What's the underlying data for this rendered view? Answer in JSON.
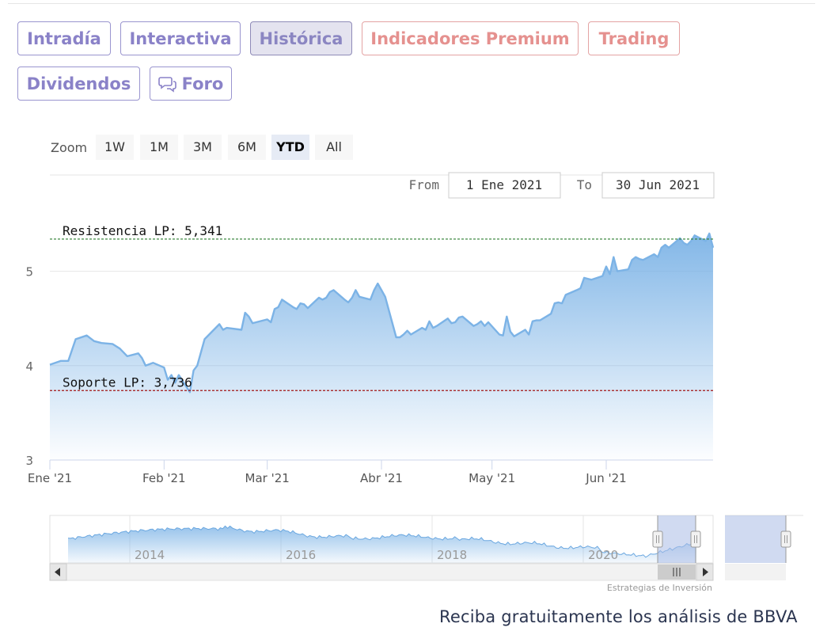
{
  "tabs": [
    {
      "label": "Intradía",
      "state": "normal"
    },
    {
      "label": "Interactiva",
      "state": "normal"
    },
    {
      "label": "Histórica",
      "state": "active"
    },
    {
      "label": "Indicadores Premium",
      "state": "premium"
    },
    {
      "label": "Trading",
      "state": "premium"
    },
    {
      "label": "Dividendos",
      "state": "normal"
    },
    {
      "label": "Foro",
      "state": "normal",
      "icon": "chat-bubbles-icon"
    }
  ],
  "zoom": {
    "label": "Zoom",
    "buttons": [
      "1W",
      "1M",
      "3M",
      "6M",
      "YTD",
      "All"
    ],
    "selected": "YTD"
  },
  "range": {
    "from_label": "From",
    "from_value": "1 Ene 2021",
    "to_label": "To",
    "to_value": "30 Jun 2021"
  },
  "chart_data": {
    "type": "area",
    "x_range": [
      "2021-01-01",
      "2021-06-30"
    ],
    "ylim": [
      3,
      5.5
    ],
    "y_ticks": [
      "3",
      "4",
      "5"
    ],
    "x_ticks": [
      {
        "label": "Ene '21",
        "date": "2021-01-01"
      },
      {
        "label": "Feb '21",
        "date": "2021-02-01"
      },
      {
        "label": "Mar '21",
        "date": "2021-03-01"
      },
      {
        "label": "Abr '21",
        "date": "2021-04-01"
      },
      {
        "label": "May '21",
        "date": "2021-05-01"
      },
      {
        "label": "Jun '21",
        "date": "2021-06-01"
      }
    ],
    "grid": true,
    "series": [
      {
        "color": "#7cb3e6",
        "points": [
          [
            "2021-01-01",
            4.01
          ],
          [
            "2021-01-04",
            4.05
          ],
          [
            "2021-01-06",
            4.05
          ],
          [
            "2021-01-08",
            4.28
          ],
          [
            "2021-01-11",
            4.32
          ],
          [
            "2021-01-13",
            4.26
          ],
          [
            "2021-01-15",
            4.24
          ],
          [
            "2021-01-18",
            4.23
          ],
          [
            "2021-01-20",
            4.18
          ],
          [
            "2021-01-22",
            4.1
          ],
          [
            "2021-01-25",
            4.13
          ],
          [
            "2021-01-26",
            4.08
          ],
          [
            "2021-01-27",
            4.0
          ],
          [
            "2021-01-29",
            4.03
          ],
          [
            "2021-02-01",
            3.98
          ],
          [
            "2021-02-02",
            3.85
          ],
          [
            "2021-02-03",
            3.9
          ],
          [
            "2021-02-04",
            3.82
          ],
          [
            "2021-02-05",
            3.9
          ],
          [
            "2021-02-08",
            3.72
          ],
          [
            "2021-02-09",
            3.95
          ],
          [
            "2021-02-10",
            4.0
          ],
          [
            "2021-02-12",
            4.28
          ],
          [
            "2021-02-15",
            4.4
          ],
          [
            "2021-02-16",
            4.44
          ],
          [
            "2021-02-17",
            4.38
          ],
          [
            "2021-02-18",
            4.4
          ],
          [
            "2021-02-22",
            4.38
          ],
          [
            "2021-02-23",
            4.56
          ],
          [
            "2021-02-24",
            4.52
          ],
          [
            "2021-02-25",
            4.45
          ],
          [
            "2021-02-26",
            4.46
          ],
          [
            "2021-03-01",
            4.49
          ],
          [
            "2021-03-02",
            4.46
          ],
          [
            "2021-03-03",
            4.6
          ],
          [
            "2021-03-04",
            4.62
          ],
          [
            "2021-03-05",
            4.7
          ],
          [
            "2021-03-08",
            4.62
          ],
          [
            "2021-03-09",
            4.6
          ],
          [
            "2021-03-10",
            4.66
          ],
          [
            "2021-03-11",
            4.65
          ],
          [
            "2021-03-12",
            4.61
          ],
          [
            "2021-03-15",
            4.72
          ],
          [
            "2021-03-16",
            4.7
          ],
          [
            "2021-03-17",
            4.72
          ],
          [
            "2021-03-18",
            4.78
          ],
          [
            "2021-03-19",
            4.8
          ],
          [
            "2021-03-22",
            4.7
          ],
          [
            "2021-03-23",
            4.67
          ],
          [
            "2021-03-24",
            4.72
          ],
          [
            "2021-03-25",
            4.8
          ],
          [
            "2021-03-26",
            4.73
          ],
          [
            "2021-03-29",
            4.7
          ],
          [
            "2021-03-30",
            4.8
          ],
          [
            "2021-03-31",
            4.87
          ],
          [
            "2021-04-01",
            4.8
          ],
          [
            "2021-04-02",
            4.73
          ],
          [
            "2021-04-05",
            4.3
          ],
          [
            "2021-04-06",
            4.3
          ],
          [
            "2021-04-07",
            4.33
          ],
          [
            "2021-04-08",
            4.37
          ],
          [
            "2021-04-09",
            4.33
          ],
          [
            "2021-04-12",
            4.4
          ],
          [
            "2021-04-13",
            4.38
          ],
          [
            "2021-04-14",
            4.47
          ],
          [
            "2021-04-15",
            4.4
          ],
          [
            "2021-04-16",
            4.42
          ],
          [
            "2021-04-19",
            4.5
          ],
          [
            "2021-04-20",
            4.45
          ],
          [
            "2021-04-21",
            4.46
          ],
          [
            "2021-04-22",
            4.51
          ],
          [
            "2021-04-23",
            4.52
          ],
          [
            "2021-04-26",
            4.42
          ],
          [
            "2021-04-27",
            4.44
          ],
          [
            "2021-04-28",
            4.47
          ],
          [
            "2021-04-29",
            4.42
          ],
          [
            "2021-04-30",
            4.46
          ],
          [
            "2021-05-03",
            4.33
          ],
          [
            "2021-05-04",
            4.32
          ],
          [
            "2021-05-05",
            4.52
          ],
          [
            "2021-05-06",
            4.36
          ],
          [
            "2021-05-07",
            4.31
          ],
          [
            "2021-05-10",
            4.38
          ],
          [
            "2021-05-11",
            4.33
          ],
          [
            "2021-05-12",
            4.47
          ],
          [
            "2021-05-13",
            4.48
          ],
          [
            "2021-05-14",
            4.48
          ],
          [
            "2021-05-17",
            4.55
          ],
          [
            "2021-05-18",
            4.66
          ],
          [
            "2021-05-19",
            4.67
          ],
          [
            "2021-05-20",
            4.66
          ],
          [
            "2021-05-21",
            4.75
          ],
          [
            "2021-05-24",
            4.8
          ],
          [
            "2021-05-25",
            4.82
          ],
          [
            "2021-05-26",
            4.93
          ],
          [
            "2021-05-27",
            4.92
          ],
          [
            "2021-05-28",
            4.91
          ],
          [
            "2021-05-31",
            4.95
          ],
          [
            "2021-06-01",
            5.05
          ],
          [
            "2021-06-02",
            4.97
          ],
          [
            "2021-06-03",
            5.15
          ],
          [
            "2021-06-04",
            5.0
          ],
          [
            "2021-06-07",
            5.02
          ],
          [
            "2021-06-08",
            5.12
          ],
          [
            "2021-06-09",
            5.15
          ],
          [
            "2021-06-10",
            5.13
          ],
          [
            "2021-06-11",
            5.12
          ],
          [
            "2021-06-14",
            5.18
          ],
          [
            "2021-06-15",
            5.15
          ],
          [
            "2021-06-16",
            5.25
          ],
          [
            "2021-06-17",
            5.28
          ],
          [
            "2021-06-18",
            5.25
          ],
          [
            "2021-06-21",
            5.35
          ],
          [
            "2021-06-22",
            5.3
          ],
          [
            "2021-06-23",
            5.28
          ],
          [
            "2021-06-24",
            5.32
          ],
          [
            "2021-06-25",
            5.38
          ],
          [
            "2021-06-28",
            5.32
          ],
          [
            "2021-06-29",
            5.4
          ],
          [
            "2021-06-30",
            5.25
          ]
        ]
      }
    ],
    "annotations": [
      {
        "label": "Resistencia LP: 5,341",
        "value": 5.341,
        "color": "#2e7d32"
      },
      {
        "label": "Soporte LP: 3,736",
        "value": 3.736,
        "color": "#a31515"
      }
    ]
  },
  "navigator": {
    "year_labels": [
      "2014",
      "2016",
      "2018",
      "2020"
    ]
  },
  "credits": "Estrategias de Inversión",
  "footer_text": "Reciba gratuitamente los análisis de BBVA"
}
